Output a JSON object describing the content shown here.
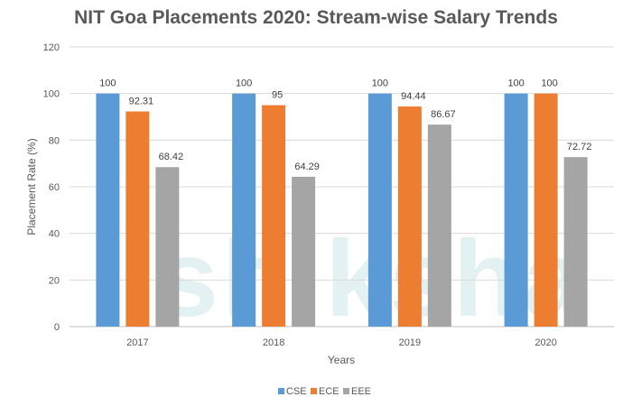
{
  "chart_data": {
    "type": "bar",
    "title": "NIT Goa Placements 2020: Stream-wise Salary Trends",
    "xlabel": "Years",
    "ylabel": "Placement Rate (%)",
    "categories": [
      "2017",
      "2018",
      "2019",
      "2020"
    ],
    "series": [
      {
        "name": "CSE",
        "values": [
          100,
          100,
          100,
          100
        ],
        "color": "#5b9bd5"
      },
      {
        "name": "ECE",
        "values": [
          92.31,
          95,
          94.44,
          100
        ],
        "color": "#ed7d31"
      },
      {
        "name": "EEE",
        "values": [
          68.42,
          64.29,
          86.67,
          72.72
        ],
        "color": "#a5a5a5"
      }
    ],
    "data_labels": [
      [
        "100",
        "100",
        "100",
        "100"
      ],
      [
        "92.31",
        "95",
        "94.44",
        "100"
      ],
      [
        "68.42",
        "64.29",
        "86.67",
        "72.72"
      ]
    ],
    "ylim": [
      0,
      120
    ],
    "yticks": [
      "0",
      "20",
      "40",
      "60",
      "80",
      "100",
      "120"
    ],
    "grid": true,
    "legend_position": "bottom"
  },
  "watermark": "shiksha"
}
